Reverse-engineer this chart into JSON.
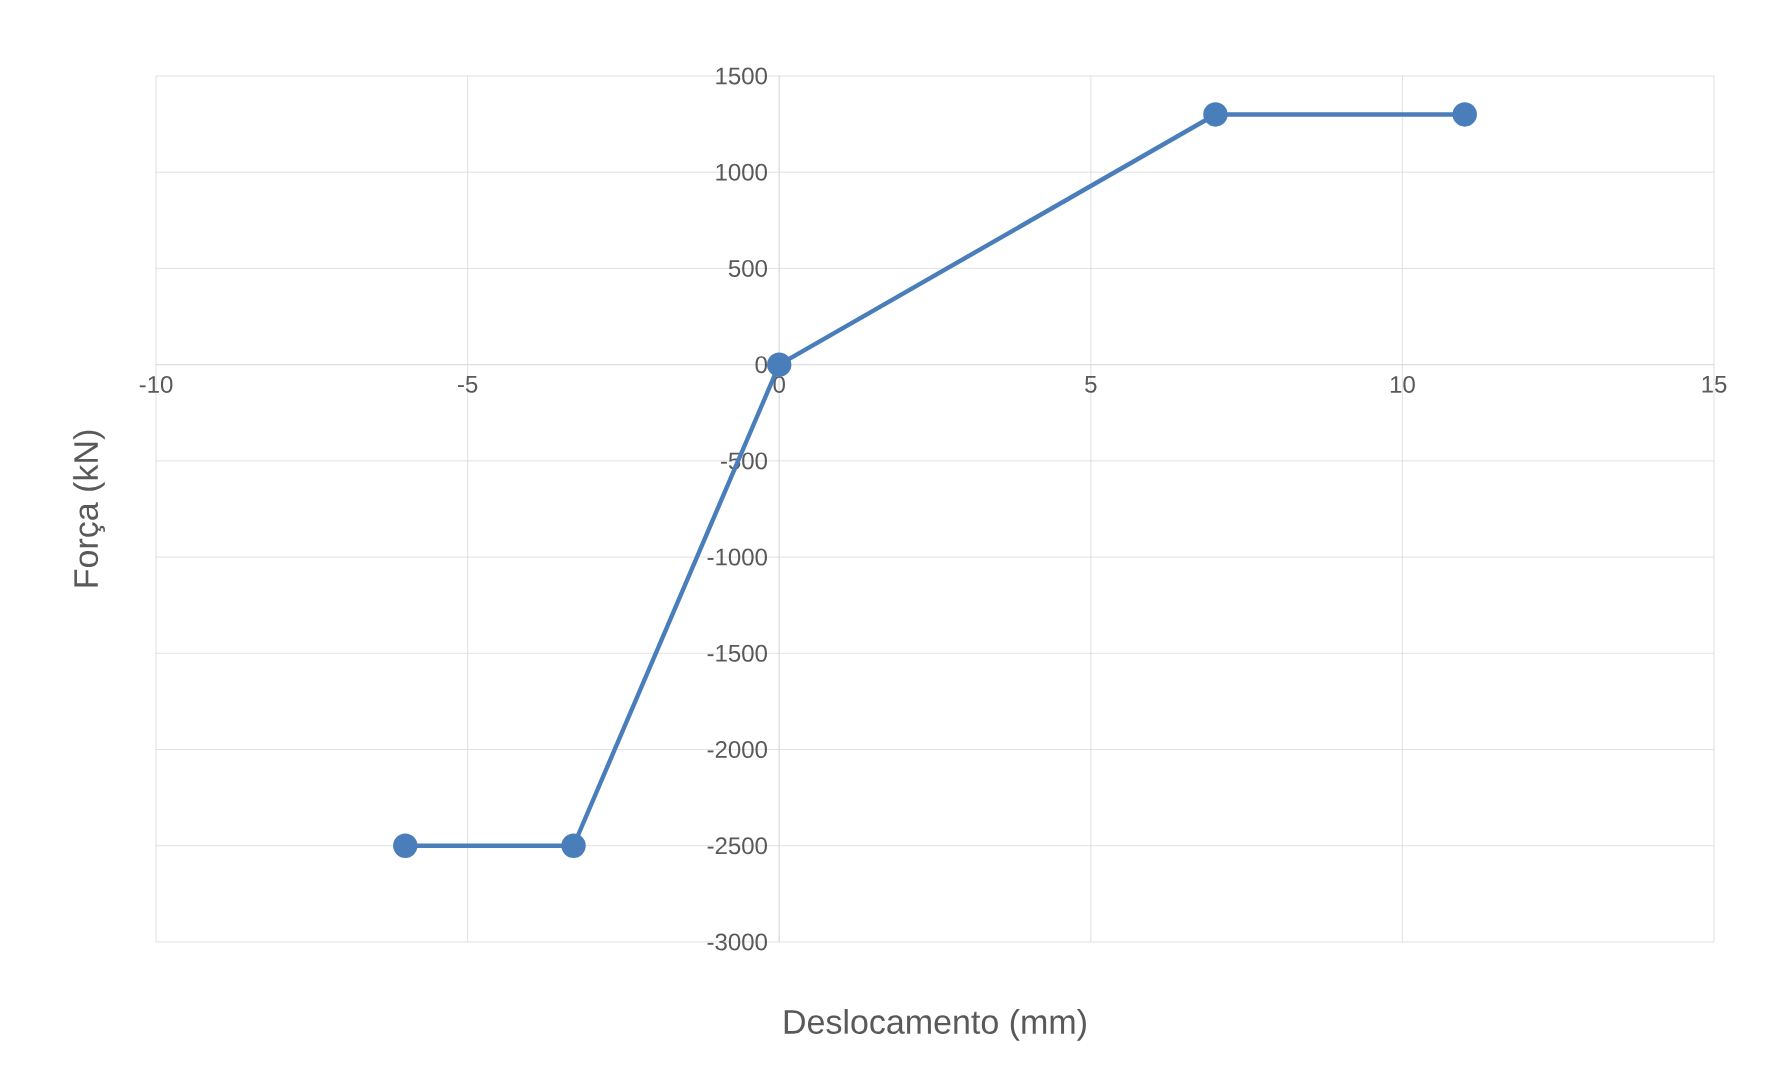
{
  "chart_data": {
    "type": "line",
    "xlabel": "Deslocamento (mm)",
    "ylabel": "Força (kN)",
    "x": [
      -6,
      -3.3,
      0,
      7,
      11
    ],
    "values": [
      -2500,
      -2500,
      0,
      1300,
      1300
    ],
    "color": "#4a7ebb",
    "marker": "circle",
    "line_style": "solid",
    "xlim": [
      -10,
      15
    ],
    "ylim": [
      -3000,
      1500
    ],
    "xticks": [
      -10,
      -5,
      0,
      5,
      10,
      15
    ],
    "yticks": [
      -3000,
      -2500,
      -2000,
      -1500,
      -1000,
      -500,
      0,
      500,
      1000,
      1500
    ],
    "grid": true
  }
}
